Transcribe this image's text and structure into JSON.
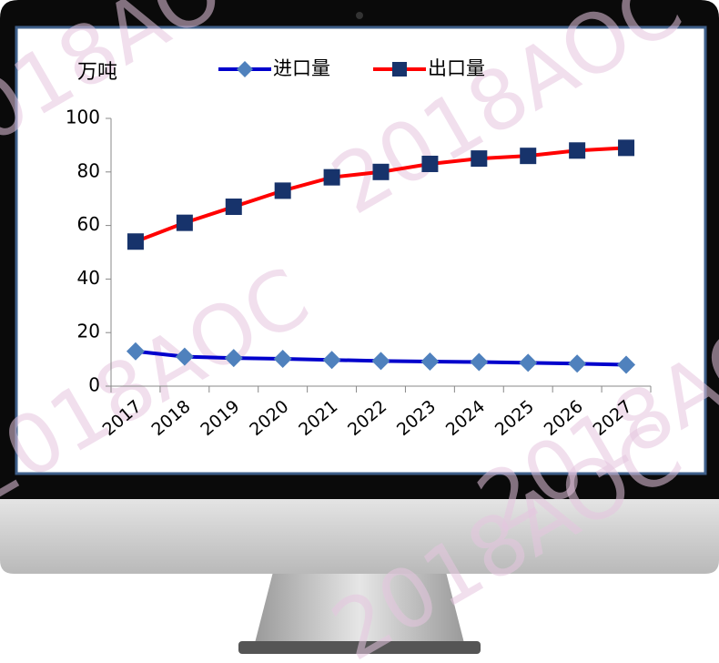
{
  "chart_data": {
    "type": "line",
    "y_label": "万吨",
    "watermark": "2018AOC",
    "categories": [
      "2017",
      "2018",
      "2019",
      "2020",
      "2021",
      "2022",
      "2023",
      "2024",
      "2025",
      "2026",
      "2027"
    ],
    "series": [
      {
        "name": "进口量",
        "color": "#0000cc",
        "marker": "diamond",
        "marker_color": "#4f81bd",
        "values": [
          13,
          11,
          10.5,
          10.2,
          9.8,
          9.4,
          9.2,
          9,
          8.7,
          8.4,
          8
        ]
      },
      {
        "name": "出口量",
        "color": "#ff0000",
        "marker": "square",
        "marker_color": "#17336b",
        "values": [
          54,
          61,
          67,
          73,
          78,
          80,
          83,
          85,
          86,
          88,
          89
        ]
      }
    ],
    "ylim": [
      0,
      100
    ],
    "yticks": [
      0,
      20,
      40,
      60,
      80,
      100
    ],
    "legend": "top"
  }
}
